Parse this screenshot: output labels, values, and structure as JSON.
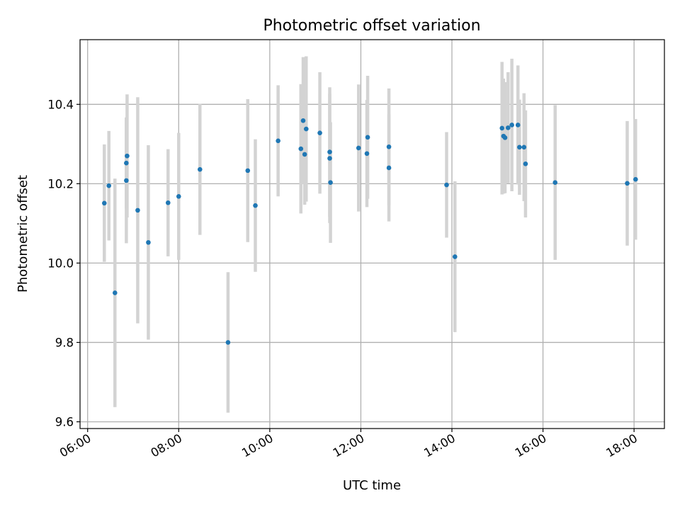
{
  "chart_data": {
    "type": "scatter",
    "title": "Photometric offset variation",
    "xlabel": "UTC time",
    "ylabel": "Photometric offset",
    "x_ticks": [
      "06:00",
      "08:00",
      "10:00",
      "12:00",
      "14:00",
      "16:00",
      "18:00"
    ],
    "y_ticks": [
      "9.6",
      "9.8",
      "10.0",
      "10.2",
      "10.4"
    ],
    "xlim": [
      "05:50",
      "18:40"
    ],
    "ylim": [
      9.583,
      10.563
    ],
    "grid": true,
    "colors": {
      "point": "#1f77b4",
      "errorbar": "#d3d3d3",
      "grid": "#b0b0b0"
    },
    "series": [
      {
        "points": [
          {
            "x": "06:22",
            "y": 10.151,
            "err": 0.148
          },
          {
            "x": "06:28",
            "y": 10.195,
            "err": 0.138
          },
          {
            "x": "06:36",
            "y": 9.925,
            "err": 0.288
          },
          {
            "x": "06:51",
            "y": 10.208,
            "err": 0.158
          },
          {
            "x": "06:51",
            "y": 10.252,
            "err": 0.115
          },
          {
            "x": "06:52",
            "y": 10.27,
            "err": 0.155
          },
          {
            "x": "07:06",
            "y": 10.133,
            "err": 0.285
          },
          {
            "x": "07:20",
            "y": 10.052,
            "err": 0.245
          },
          {
            "x": "07:46",
            "y": 10.152,
            "err": 0.135
          },
          {
            "x": "08:00",
            "y": 10.168,
            "err": 0.16
          },
          {
            "x": "08:28",
            "y": 10.236,
            "err": 0.165
          },
          {
            "x": "09:05",
            "y": 9.8,
            "err": 0.177
          },
          {
            "x": "09:31",
            "y": 10.233,
            "err": 0.18
          },
          {
            "x": "09:41",
            "y": 10.145,
            "err": 0.167
          },
          {
            "x": "10:11",
            "y": 10.308,
            "err": 0.14
          },
          {
            "x": "10:41",
            "y": 10.288,
            "err": 0.163
          },
          {
            "x": "10:44",
            "y": 10.359,
            "err": 0.16
          },
          {
            "x": "10:46",
            "y": 10.274,
            "err": 0.127
          },
          {
            "x": "10:48",
            "y": 10.338,
            "err": 0.183
          },
          {
            "x": "11:06",
            "y": 10.328,
            "err": 0.153
          },
          {
            "x": "11:19",
            "y": 10.28,
            "err": 0.163
          },
          {
            "x": "11:19",
            "y": 10.264,
            "err": 0.163
          },
          {
            "x": "11:20",
            "y": 10.203,
            "err": 0.152
          },
          {
            "x": "11:57",
            "y": 10.29,
            "err": 0.16
          },
          {
            "x": "12:08",
            "y": 10.276,
            "err": 0.135
          },
          {
            "x": "12:09",
            "y": 10.317,
            "err": 0.155
          },
          {
            "x": "12:37",
            "y": 10.293,
            "err": 0.147
          },
          {
            "x": "12:37",
            "y": 10.24,
            "err": 0.135
          },
          {
            "x": "13:53",
            "y": 10.197,
            "err": 0.133
          },
          {
            "x": "14:04",
            "y": 10.016,
            "err": 0.19
          },
          {
            "x": "15:06",
            "y": 10.34,
            "err": 0.167
          },
          {
            "x": "15:08",
            "y": 10.32,
            "err": 0.145
          },
          {
            "x": "15:10",
            "y": 10.316,
            "err": 0.14
          },
          {
            "x": "15:14",
            "y": 10.341,
            "err": 0.14
          },
          {
            "x": "15:19",
            "y": 10.348,
            "err": 0.167
          },
          {
            "x": "15:27",
            "y": 10.348,
            "err": 0.15
          },
          {
            "x": "15:29",
            "y": 10.292,
            "err": 0.12
          },
          {
            "x": "15:35",
            "y": 10.292,
            "err": 0.136
          },
          {
            "x": "15:37",
            "y": 10.25,
            "err": 0.135
          },
          {
            "x": "16:16",
            "y": 10.203,
            "err": 0.195
          },
          {
            "x": "17:51",
            "y": 10.201,
            "err": 0.157
          },
          {
            "x": "18:02",
            "y": 10.211,
            "err": 0.152
          }
        ]
      }
    ]
  }
}
